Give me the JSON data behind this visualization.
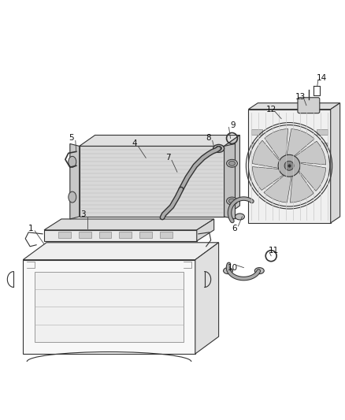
{
  "background_color": "#ffffff",
  "figure_width": 4.38,
  "figure_height": 5.33,
  "dpi": 100,
  "gray_dark": "#333333",
  "gray_mid": "#777777",
  "gray_light": "#aaaaaa",
  "gray_fill": "#d8d8d8",
  "gray_fin": "#c0c0c0",
  "label_fontsize": 7.5
}
